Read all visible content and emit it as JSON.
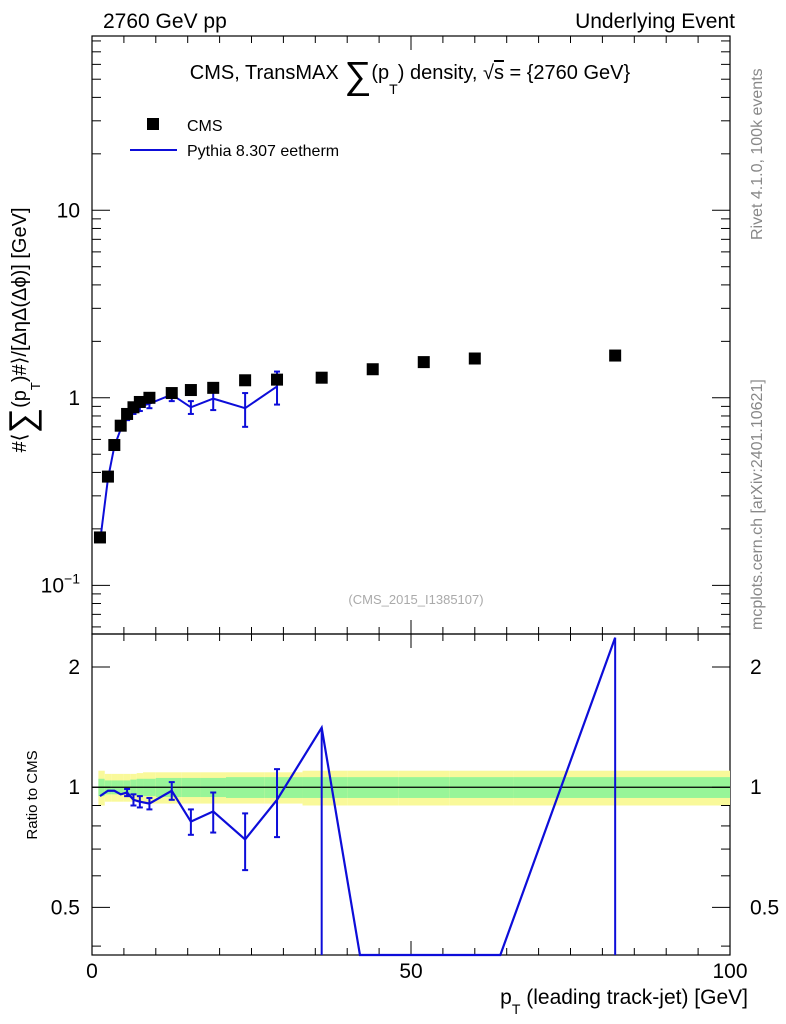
{
  "header": {
    "left": "2760 GeV pp",
    "right": "Underlying Event"
  },
  "title": {
    "prefix": "CMS, TransMAX ",
    "sum_symbol": "∑",
    "pt_open": "(p",
    "pt_sub": "T",
    "pt_close": ")",
    "suffix": " density, ",
    "sqrt_symbol": "√",
    "sqrt_arg": "s",
    "energy": " = {2760 GeV}"
  },
  "side_labels": {
    "rivet": "Rivet 4.1.0,  100k events",
    "mcplots": "mcplots.cern.ch [arXiv:2401.10621]"
  },
  "watermark": "(CMS_2015_I1385107)",
  "legend": {
    "data_label": "CMS",
    "mc_label": "Pythia 8.307 eetherm"
  },
  "colors": {
    "mc": "#0d0dd9",
    "data": "#000000",
    "band_inner": "#98f598",
    "band_outer": "#f9f99a"
  },
  "chart_data": {
    "type": "scatter",
    "xlabel": "p_T (leading track-jet) [GeV]",
    "ylabel": "#⟨∑(p_T)#⟩/[ΔηΔ(Δϕ)] [GeV]",
    "ratio_ylabel": "Ratio to CMS",
    "xlim": [
      0,
      100
    ],
    "ylim_main": [
      0.055,
      85
    ],
    "ylim_ratio": [
      0.38,
      2.42
    ],
    "y_scale": "log",
    "x_ticks": [
      0,
      50,
      100
    ],
    "main_y_ticks": [
      {
        "value": 0.1,
        "base": "10",
        "exp": "−1"
      },
      {
        "value": 1,
        "base": "1",
        "exp": ""
      },
      {
        "value": 10,
        "base": "10",
        "exp": ""
      }
    ],
    "ratio_y_ticks": [
      {
        "value": 0.5,
        "label": "0.5"
      },
      {
        "value": 1,
        "label": "1"
      },
      {
        "value": 2,
        "label": "2"
      }
    ],
    "data_series": {
      "name": "CMS",
      "x": [
        1.25,
        2.5,
        3.5,
        4.5,
        5.5,
        6.5,
        7.5,
        9.0,
        12.5,
        15.5,
        19.0,
        24.0,
        29.0,
        36.0,
        44.0,
        52.0,
        60.0,
        82.0
      ],
      "y": [
        0.18,
        0.38,
        0.56,
        0.71,
        0.82,
        0.89,
        0.95,
        1.0,
        1.06,
        1.1,
        1.13,
        1.24,
        1.25,
        1.28,
        1.42,
        1.55,
        1.62,
        1.68
      ]
    },
    "mc_series": {
      "name": "Pythia 8.307 eetherm",
      "x": [
        1.25,
        2.5,
        3.5,
        4.5,
        5.5,
        6.5,
        7.5,
        9.0,
        12.5,
        15.5,
        19.0,
        24.0,
        29.0
      ],
      "y": [
        0.17,
        0.37,
        0.55,
        0.68,
        0.79,
        0.86,
        0.9,
        0.93,
        1.04,
        0.89,
        0.99,
        0.88,
        1.15
      ],
      "err": [
        0.0,
        0.0,
        0.0,
        0.0,
        0.03,
        0.04,
        0.05,
        0.05,
        0.08,
        0.07,
        0.13,
        0.18,
        0.23
      ]
    },
    "ratio_series": {
      "name": "Pythia 8.307 eetherm / CMS",
      "x": [
        1.25,
        2.5,
        3.5,
        4.5,
        5.5,
        6.5,
        7.5,
        9.0,
        12.5,
        15.5,
        19.0,
        24.0,
        29.0,
        36.0,
        42.0,
        64.0,
        82.0
      ],
      "y": [
        0.95,
        0.98,
        0.98,
        0.96,
        0.97,
        0.93,
        0.92,
        0.91,
        0.98,
        0.82,
        0.87,
        0.74,
        0.93,
        1.41,
        0.38,
        0.38,
        2.37
      ],
      "err": [
        0.0,
        0.0,
        0.0,
        0.0,
        0.02,
        0.03,
        0.03,
        0.03,
        0.05,
        0.06,
        0.1,
        0.12,
        0.18,
        0.0,
        0.0,
        0.0,
        0.0
      ],
      "drops_to_axis": [
        36.0,
        82.0
      ]
    },
    "uncertainty_band": {
      "x_edges": [
        1,
        2,
        3,
        4,
        5,
        6,
        7,
        8,
        10,
        14,
        17,
        21,
        27,
        33,
        40,
        48,
        56,
        66,
        100
      ],
      "inner": [
        0.05,
        0.04,
        0.04,
        0.04,
        0.04,
        0.045,
        0.05,
        0.05,
        0.055,
        0.055,
        0.055,
        0.06,
        0.06,
        0.06,
        0.06,
        0.06,
        0.06,
        0.06
      ],
      "outer": [
        0.1,
        0.08,
        0.08,
        0.08,
        0.08,
        0.08,
        0.085,
        0.09,
        0.09,
        0.09,
        0.09,
        0.09,
        0.09,
        0.1,
        0.1,
        0.1,
        0.1,
        0.1
      ]
    }
  }
}
